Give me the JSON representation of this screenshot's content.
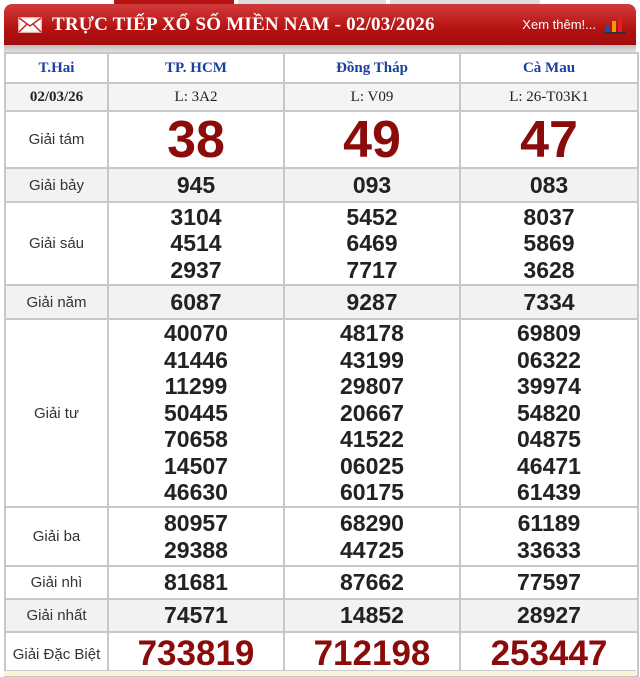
{
  "header": {
    "title": "TRỰC TIẾP XỔ SỐ MIỀN NAM - 02/03/2026",
    "more_link": "Xem thêm!...",
    "accent": "#b51212"
  },
  "columns": {
    "day": "T.Hai",
    "provinces": [
      "TP. HCM",
      "Đồng Tháp",
      "Cà Mau"
    ]
  },
  "date_row": {
    "date": "02/03/26",
    "lots": [
      "L: 3A2",
      "L: V09",
      "L: 26-T03K1"
    ]
  },
  "prizes": [
    {
      "label": "Giải tám",
      "values": [
        [
          "38"
        ],
        [
          "49"
        ],
        [
          "47"
        ]
      ]
    },
    {
      "label": "Giải bảy",
      "values": [
        [
          "945"
        ],
        [
          "093"
        ],
        [
          "083"
        ]
      ]
    },
    {
      "label": "Giải sáu",
      "values": [
        [
          "3104",
          "4514",
          "2937"
        ],
        [
          "5452",
          "6469",
          "7717"
        ],
        [
          "8037",
          "5869",
          "3628"
        ]
      ]
    },
    {
      "label": "Giải năm",
      "values": [
        [
          "6087"
        ],
        [
          "9287"
        ],
        [
          "7334"
        ]
      ]
    },
    {
      "label": "Giải tư",
      "values": [
        [
          "40070",
          "41446",
          "11299",
          "50445",
          "70658",
          "14507",
          "46630"
        ],
        [
          "48178",
          "43199",
          "29807",
          "20667",
          "41522",
          "06025",
          "60175"
        ],
        [
          "69809",
          "06322",
          "39974",
          "54820",
          "04875",
          "46471",
          "61439"
        ]
      ]
    },
    {
      "label": "Giải ba",
      "values": [
        [
          "80957",
          "29388"
        ],
        [
          "68290",
          "44725"
        ],
        [
          "61189",
          "33633"
        ]
      ]
    },
    {
      "label": "Giải nhì",
      "values": [
        [
          "81681"
        ],
        [
          "87662"
        ],
        [
          "77597"
        ]
      ]
    },
    {
      "label": "Giải nhất",
      "values": [
        [
          "74571"
        ],
        [
          "14852"
        ],
        [
          "28927"
        ]
      ]
    },
    {
      "label": "Giải Đặc Biệt",
      "values": [
        [
          "733819"
        ],
        [
          "712198"
        ],
        [
          "253447"
        ]
      ]
    }
  ]
}
